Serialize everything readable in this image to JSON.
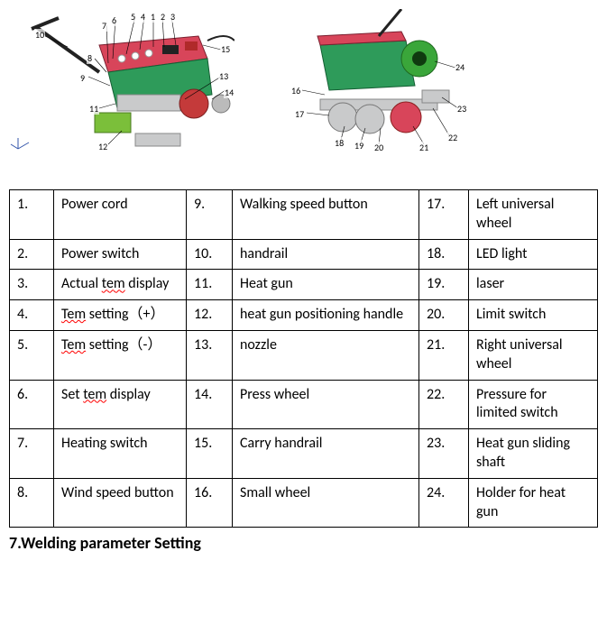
{
  "table": {
    "rows": [
      {
        "n1": "1.",
        "t1": "Power cord",
        "t1_squiggle": false,
        "n2": "9.",
        "t2": "Walking speed button",
        "n3": "17.",
        "t3": "Left universal wheel"
      },
      {
        "n1": "2.",
        "t1": "Power switch",
        "t1_squiggle": false,
        "n2": "10.",
        "t2": "handrail",
        "n3": "18.",
        "t3": "LED light"
      },
      {
        "n1": "3.",
        "t1": "Actual tem display",
        "t1_squiggle": true,
        "squiggle_word": "tem",
        "t1_pre": "Actual ",
        "t1_post": " display",
        "n2": "11.",
        "t2": "Heat gun",
        "n3": "19.",
        "t3": "laser"
      },
      {
        "n1": "4.",
        "t1": "Tem setting（+）",
        "t1_squiggle": true,
        "squiggle_word": "Tem",
        "t1_pre": "",
        "t1_post": " setting（+）",
        "n2": "12.",
        "t2": "heat gun positioning handle",
        "n3": "20.",
        "t3": "Limit switch"
      },
      {
        "n1": "5.",
        "t1": "Tem setting（-）",
        "t1_squiggle": true,
        "squiggle_word": "Tem",
        "t1_pre": "",
        "t1_post": " setting（-）",
        "n2": "13.",
        "t2": "nozzle",
        "n3": "21.",
        "t3": "Right universal wheel"
      },
      {
        "n1": "6.",
        "t1": "Set tem display",
        "t1_squiggle": true,
        "squiggle_word": "tem",
        "t1_pre": "Set ",
        "t1_post": " display",
        "n2": "14.",
        "t2": "Press wheel",
        "n3": "22.",
        "t3": "Pressure for limited switch"
      },
      {
        "n1": "7.",
        "t1": "Heating switch",
        "t1_squiggle": false,
        "n2": "15.",
        "t2": "Carry handrail",
        "n3": "23.",
        "t3": "Heat gun sliding shaft"
      },
      {
        "n1": "8.",
        "t1": "Wind speed button",
        "t1_squiggle": false,
        "n2": "16.",
        "t2": "Small wheel",
        "n3": "24.",
        "t3": "Holder for heat gun"
      }
    ]
  },
  "heading": "7.Welding parameter Setting",
  "image1": {
    "callouts": [
      "1",
      "2",
      "3",
      "4",
      "5",
      "6",
      "7",
      "8",
      "9",
      "10",
      "11",
      "12",
      "13",
      "14",
      "15"
    ],
    "body_color": "#2e9b5a",
    "panel_color": "#d8455a",
    "wheel_color": "#c43a3a",
    "metal_color": "#c9cacb",
    "heatgun_color": "#7bbf3a"
  },
  "image2": {
    "callouts": [
      "16",
      "17",
      "18",
      "19",
      "20",
      "21",
      "22",
      "23",
      "24"
    ],
    "body_color": "#2e9b5a",
    "panel_color": "#d8455a",
    "wheel_color": "#c9cacb",
    "press_wheel": "#d8455a",
    "heatgun_color": "#3aa63a",
    "metal_color": "#c9cacb"
  }
}
